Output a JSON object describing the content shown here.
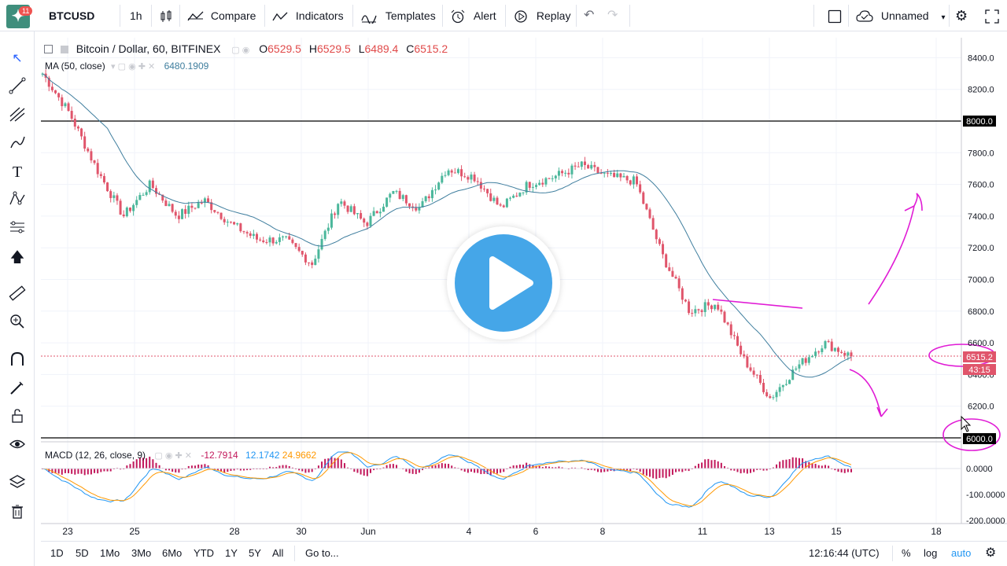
{
  "topbar": {
    "logo_badge": "11",
    "symbol": "BTCUSD",
    "interval": "1h",
    "compare": "Compare",
    "indicators": "Indicators",
    "templates": "Templates",
    "alert": "Alert",
    "replay": "Replay",
    "layout_name": "Unnamed"
  },
  "legend": {
    "title": "Bitcoin / Dollar, 60, BITFINEX",
    "o_label": "O",
    "o_value": "6529.5",
    "h_label": "H",
    "h_value": "6529.5",
    "l_label": "L",
    "l_value": "6489.4",
    "c_label": "C",
    "c_value": "6515.2",
    "ma_label": "MA (50, close)",
    "ma_value": "6480.1909",
    "macd_label": "MACD (12, 26, close, 9)",
    "macd_v1": "-12.7914",
    "macd_v2": "12.1742",
    "macd_v3": "24.9662"
  },
  "price_axis": {
    "ticks": [
      "8400.0",
      "8200.0",
      "8000.0",
      "7800.0",
      "7600.0",
      "7400.0",
      "7200.0",
      "7000.0",
      "6800.0",
      "6600.0",
      "6400.0",
      "6200.0",
      "6000.0"
    ],
    "last_price": "6515.2",
    "countdown": "43:15",
    "hline_upper_label": "8000.0",
    "hline_lower_label": "6000.0"
  },
  "macd_axis": {
    "ticks": [
      "0.0000",
      "-100.0000",
      "-200.0000"
    ]
  },
  "time_axis": {
    "labels": [
      "23",
      "25",
      "28",
      "30",
      "Jun",
      "4",
      "6",
      "8",
      "11",
      "13",
      "15",
      "18"
    ]
  },
  "bottombar": {
    "ranges": [
      "1D",
      "5D",
      "1Mo",
      "3Mo",
      "6Mo",
      "YTD",
      "1Y",
      "5Y",
      "All"
    ],
    "goto": "Go to...",
    "clock": "12:16:44 (UTC)",
    "percent": "%",
    "log": "log",
    "auto": "auto"
  },
  "colors": {
    "up": "#4bb79b",
    "down": "#e0556b",
    "ma": "#3f7e9e",
    "annotation": "#e01bd5",
    "play": "#45a6e8",
    "macd_line": "#2196f3",
    "signal_line": "#ff9800",
    "hist": "#c2185b"
  },
  "chart_data": {
    "type": "candlestick",
    "symbol": "BTCUSD",
    "exchange": "BITFINEX",
    "interval": "60",
    "ylim": [
      5900,
      8500
    ],
    "hlines": [
      8000,
      6000
    ],
    "price_path": [
      [
        "23",
        8300
      ],
      [
        "23",
        8050
      ],
      [
        "24",
        7700
      ],
      [
        "24",
        7400
      ],
      [
        "25",
        7600
      ],
      [
        "25",
        7400
      ],
      [
        "26",
        7500
      ],
      [
        "27",
        7350
      ],
      [
        "28",
        7250
      ],
      [
        "28",
        7250
      ],
      [
        "29",
        7100
      ],
      [
        "30",
        7500
      ],
      [
        "31",
        7350
      ],
      [
        "Jun",
        7550
      ],
      [
        "2",
        7450
      ],
      [
        "3",
        7700
      ],
      [
        "4",
        7650
      ],
      [
        "4",
        7450
      ],
      [
        "5",
        7600
      ],
      [
        "6",
        7650
      ],
      [
        "7",
        7720
      ],
      [
        "8",
        7650
      ],
      [
        "9",
        7620
      ],
      [
        "10",
        7150
      ],
      [
        "11",
        6800
      ],
      [
        "12",
        6850
      ],
      [
        "13",
        6500
      ],
      [
        "13",
        6250
      ],
      [
        "14",
        6450
      ],
      [
        "15",
        6600
      ],
      [
        "15",
        6515
      ]
    ],
    "ma_label": "MA (50, close)"
  }
}
